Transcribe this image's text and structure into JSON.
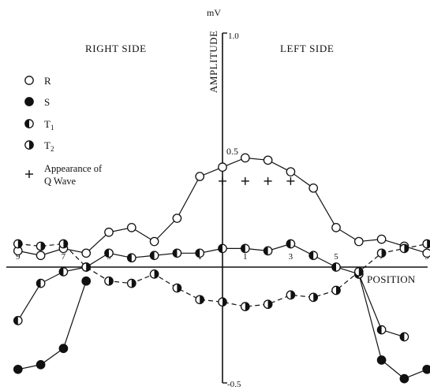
{
  "chart_data": {
    "type": "line",
    "title": "",
    "ylabel": "AMPLITUDE",
    "y_unit": "mV",
    "xlabel": "POSITION",
    "ylim": [
      -0.5,
      1.0
    ],
    "y_ticks": [
      {
        "value": 1.0,
        "label": "1.0"
      },
      {
        "value": 0.5,
        "label": "0.5"
      },
      {
        "value": -0.5,
        "label": "-0.5"
      }
    ],
    "side_labels": {
      "right": "RIGHT SIDE",
      "left": "LEFT SIDE"
    },
    "x_positions": [
      -9,
      -8,
      -7,
      -6,
      -5,
      -4,
      -3,
      -2,
      -1,
      0,
      1,
      2,
      3,
      4,
      5,
      6,
      7,
      8,
      9
    ],
    "x_tick_labels": [
      {
        "x": -9,
        "label": "9"
      },
      {
        "x": -7,
        "label": "7"
      },
      {
        "x": -5,
        "label": "5"
      },
      {
        "x": -3,
        "label": "3"
      },
      {
        "x": -1,
        "label": "1"
      },
      {
        "x": 1,
        "label": "1"
      },
      {
        "x": 3,
        "label": "3"
      },
      {
        "x": 5,
        "label": "5"
      },
      {
        "x": 7,
        "label": "7"
      },
      {
        "x": 9,
        "label": "9"
      }
    ],
    "legend": {
      "items": [
        {
          "symbol": "open-circle",
          "label": "R"
        },
        {
          "symbol": "filled-circle",
          "label": "S"
        },
        {
          "symbol": "half-left-filled-circle",
          "label": "T1"
        },
        {
          "symbol": "half-right-filled-circle",
          "label": "T2"
        },
        {
          "symbol": "plus",
          "label_line1": "Appearance of",
          "label_line2": "Q Wave"
        }
      ]
    },
    "series": [
      {
        "name": "R",
        "marker": "open-circle",
        "line": "solid",
        "values": [
          0.07,
          0.05,
          0.08,
          0.06,
          0.15,
          0.17,
          0.11,
          0.21,
          0.39,
          0.43,
          0.47,
          0.46,
          0.41,
          0.34,
          0.17,
          0.11,
          0.12,
          0.09,
          0.06
        ]
      },
      {
        "name": "S",
        "marker": "filled-circle",
        "line": "solid",
        "values": [
          -0.44,
          -0.42,
          -0.35,
          -0.06,
          null,
          null,
          null,
          null,
          null,
          null,
          null,
          null,
          null,
          null,
          null,
          -0.03,
          -0.4,
          -0.48,
          -0.44
        ]
      },
      {
        "name": "T1",
        "marker": "half-left-filled-circle",
        "line": "solid",
        "values": [
          -0.23,
          -0.07,
          -0.02,
          0.0,
          0.06,
          0.04,
          0.05,
          0.06,
          0.06,
          0.08,
          0.08,
          0.07,
          0.1,
          0.05,
          0.0,
          -0.03,
          -0.27,
          -0.3,
          null
        ]
      },
      {
        "name": "T2",
        "marker": "half-right-filled-circle",
        "line": "dashed",
        "values": [
          0.1,
          0.09,
          0.1,
          0.0,
          -0.06,
          -0.07,
          -0.03,
          -0.09,
          -0.14,
          -0.15,
          -0.17,
          -0.16,
          -0.12,
          -0.13,
          -0.1,
          -0.02,
          0.06,
          0.08,
          0.1
        ]
      }
    ],
    "q_wave_x": [
      0,
      1,
      2,
      3
    ],
    "q_wave_y": 0.37,
    "grid": false
  }
}
